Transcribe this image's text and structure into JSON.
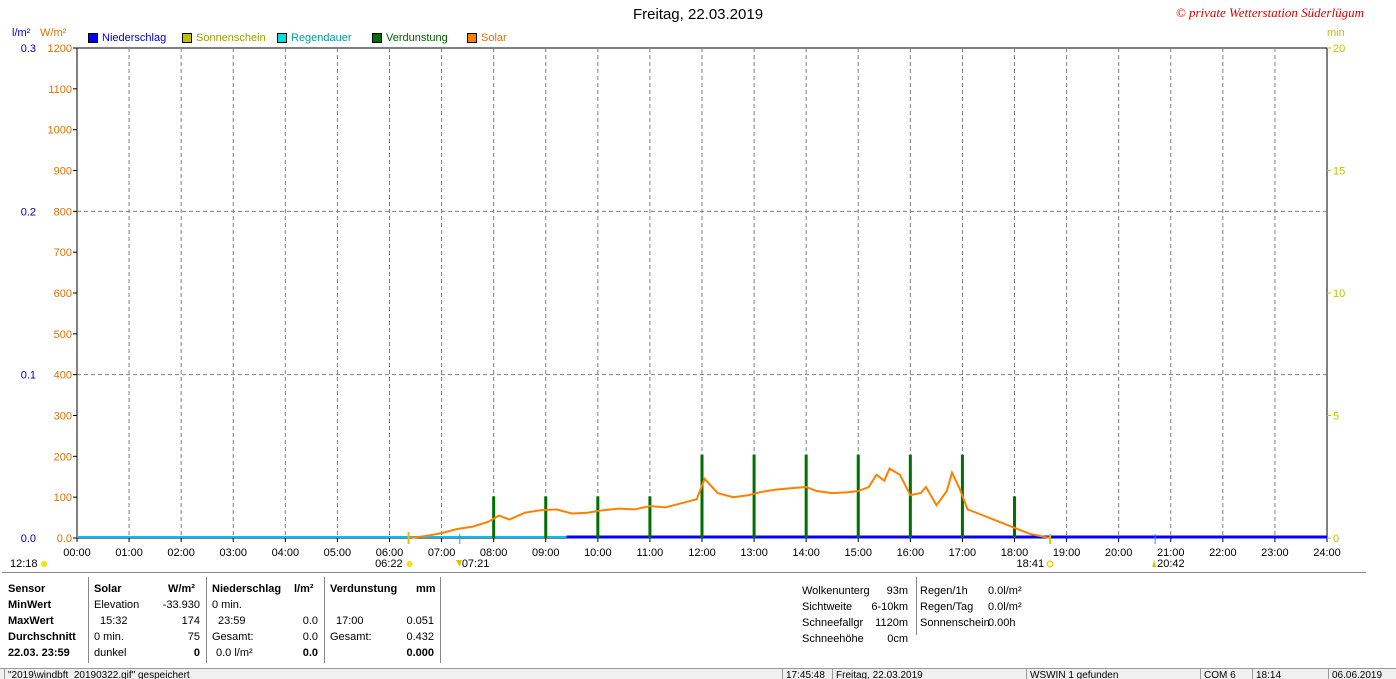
{
  "header": {
    "title": "Freitag, 22.03.2019",
    "copyright": "© private Wetterstation Süderlügum",
    "unit_left_rain": "l/m²",
    "unit_left_solar": "W/m²",
    "unit_right": "min"
  },
  "colors": {
    "niederschlag": "#0000ff",
    "sonnenschein": "#c0c000",
    "regendauer": "#00e0e0",
    "verdunstung": "#007000",
    "solar": "#ff8000",
    "grid": "#808080"
  },
  "chart_data": {
    "type": "line",
    "title": "Freitag, 22.03.2019",
    "x_ticks": [
      "00:00",
      "01:00",
      "02:00",
      "03:00",
      "04:00",
      "05:00",
      "06:00",
      "07:00",
      "08:00",
      "09:00",
      "10:00",
      "11:00",
      "12:00",
      "13:00",
      "14:00",
      "15:00",
      "16:00",
      "17:00",
      "18:00",
      "19:00",
      "20:00",
      "21:00",
      "22:00",
      "23:00",
      "24:00"
    ],
    "y_left_rain": {
      "unit": "l/m²",
      "ticks": [
        "0.0",
        "0.1",
        "0.2",
        "0.3"
      ],
      "range": [
        0,
        0.3
      ]
    },
    "y_left_solar": {
      "unit": "W/m²",
      "ticks": [
        "0.0",
        "100",
        "200",
        "300",
        "400",
        "500",
        "600",
        "700",
        "800",
        "900",
        "1000",
        "1100",
        "1200"
      ],
      "range": [
        0,
        1200
      ]
    },
    "y_right": {
      "unit": "min",
      "ticks": [
        "0",
        "5",
        "10",
        "15",
        "20"
      ],
      "range": [
        0,
        20
      ]
    },
    "grid": true,
    "legend_position": "top",
    "legend": [
      "Niederschlag",
      "Sonnenschein",
      "Regendauer",
      "Verdunstung",
      "Solar"
    ],
    "series": [
      {
        "name": "Solar",
        "unit": "W/m²",
        "points": [
          [
            6.4,
            0
          ],
          [
            6.7,
            5
          ],
          [
            7.0,
            12
          ],
          [
            7.3,
            22
          ],
          [
            7.6,
            28
          ],
          [
            7.9,
            40
          ],
          [
            8.1,
            55
          ],
          [
            8.3,
            45
          ],
          [
            8.6,
            62
          ],
          [
            8.9,
            68
          ],
          [
            9.2,
            70
          ],
          [
            9.5,
            60
          ],
          [
            9.8,
            62
          ],
          [
            10.1,
            68
          ],
          [
            10.4,
            72
          ],
          [
            10.7,
            70
          ],
          [
            11.0,
            78
          ],
          [
            11.3,
            75
          ],
          [
            11.6,
            85
          ],
          [
            11.9,
            95
          ],
          [
            12.05,
            145
          ],
          [
            12.3,
            110
          ],
          [
            12.6,
            100
          ],
          [
            12.9,
            105
          ],
          [
            13.1,
            112
          ],
          [
            13.4,
            118
          ],
          [
            13.7,
            122
          ],
          [
            14.0,
            125
          ],
          [
            14.2,
            115
          ],
          [
            14.5,
            110
          ],
          [
            14.8,
            112
          ],
          [
            15.0,
            115
          ],
          [
            15.2,
            125
          ],
          [
            15.35,
            155
          ],
          [
            15.5,
            140
          ],
          [
            15.6,
            170
          ],
          [
            15.8,
            155
          ],
          [
            16.0,
            105
          ],
          [
            16.2,
            110
          ],
          [
            16.3,
            125
          ],
          [
            16.5,
            80
          ],
          [
            16.7,
            115
          ],
          [
            16.8,
            160
          ],
          [
            16.95,
            120
          ],
          [
            17.1,
            70
          ],
          [
            17.4,
            55
          ],
          [
            17.7,
            40
          ],
          [
            18.0,
            25
          ],
          [
            18.3,
            10
          ],
          [
            18.6,
            2
          ],
          [
            18.7,
            0
          ]
        ]
      },
      {
        "name": "Verdunstung",
        "unit": "min",
        "bars": [
          [
            8.0,
            1.7
          ],
          [
            9.0,
            1.7
          ],
          [
            10.0,
            1.7
          ],
          [
            11.0,
            1.7
          ],
          [
            12.0,
            3.4
          ],
          [
            13.0,
            3.4
          ],
          [
            14.0,
            3.4
          ],
          [
            15.0,
            3.4
          ],
          [
            16.0,
            3.4
          ],
          [
            17.0,
            3.4
          ],
          [
            18.0,
            1.7
          ]
        ]
      },
      {
        "name": "Niederschlag",
        "unit": "l/m²",
        "value": 0.0
      }
    ],
    "markers": {
      "sunrise": "06:22",
      "civil": "07:21",
      "sunset": "18:41",
      "moon": "20:42",
      "left_time": "12:18"
    }
  },
  "stats": {
    "sensor": {
      "header": "Sensor",
      "min": "MinWert",
      "max": "MaxWert",
      "avg": "Durchschnitt",
      "date": "22.03. 23:59"
    },
    "solar": {
      "header": "Solar",
      "unit": "W/m²",
      "min_label": "Elevation",
      "min_value": "-33.930",
      "max_time": "15:32",
      "max_value": "174",
      "avg_label": "0 min.",
      "avg_value": "75",
      "state_label": "dunkel",
      "state_value": "0"
    },
    "niederschlag": {
      "header": "Niederschlag",
      "unit": "l/m²",
      "min_label": "0 min.",
      "max_time": "23:59",
      "max_value": "0.0",
      "gesamt_label": "Gesamt:",
      "gesamt_value": "0.0",
      "sum_label": "0.0 l/m²",
      "sum_value": "0.0"
    },
    "verdunstung": {
      "header": "Verdunstung",
      "unit": "mm",
      "max_time": "17:00",
      "max_value": "0.051",
      "gesamt_label": "Gesamt:",
      "gesamt_value": "0.432",
      "sum_value": "0.000"
    },
    "extra1": [
      {
        "label": "Wolkenunterg",
        "value": "93m"
      },
      {
        "label": "Sichtweite",
        "value": "6-10km"
      },
      {
        "label": "Schneefallgr",
        "value": "1120m"
      },
      {
        "label": "Schneehöhe",
        "value": "0cm"
      }
    ],
    "extra2": [
      {
        "label": "Regen/1h",
        "value": "0.0l/m²"
      },
      {
        "label": "Regen/Tag",
        "value": "0.0l/m²"
      },
      {
        "label": "Sonnenschein",
        "value": "0.00h"
      }
    ]
  },
  "statusbar": {
    "s1": "\"2019\\windbft_20190322.gif\" gespeichert",
    "s2": "17:45:48",
    "s3": "Freitag, 22.03.2019",
    "s4": "WSWIN 1 gefunden",
    "s5": "COM 6",
    "s6": "18:14",
    "s7": "06.06.2019"
  }
}
